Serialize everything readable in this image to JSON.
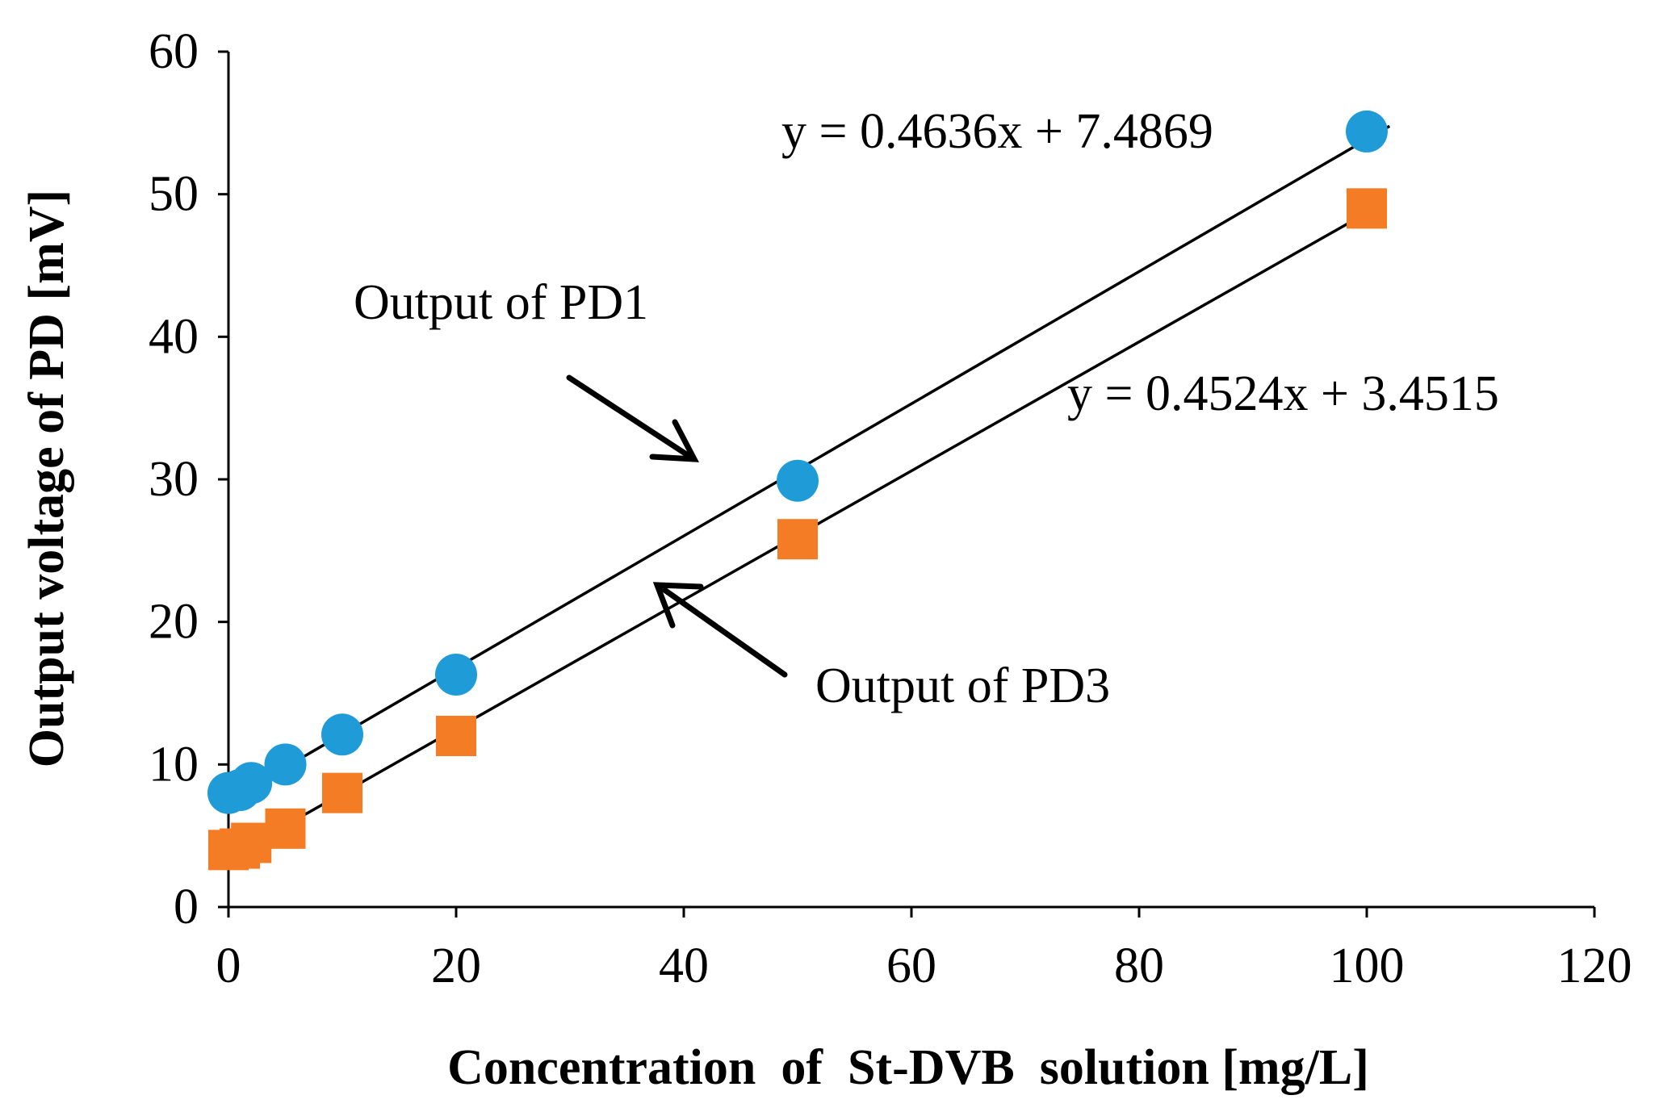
{
  "chart_data": {
    "type": "scatter",
    "title": "",
    "xlabel": "Concentration  of  St-DVB  solution [mg/L]",
    "ylabel": "Output voltage of PD [mV]",
    "xlim": [
      0,
      120
    ],
    "ylim": [
      0,
      60
    ],
    "xticks": [
      0,
      20,
      40,
      60,
      80,
      100,
      120
    ],
    "yticks": [
      0,
      10,
      20,
      30,
      40,
      50,
      60
    ],
    "xtick_labels": [
      "0",
      "20",
      "40",
      "60",
      "80",
      "100",
      "120"
    ],
    "ytick_labels": [
      "0",
      "10",
      "20",
      "30",
      "40",
      "50",
      "60"
    ],
    "grid": false,
    "series": [
      {
        "name": "Output of PD1",
        "marker": "circle",
        "color": "#1f9bd7",
        "x": [
          0,
          1,
          2,
          5,
          10,
          20,
          50,
          100
        ],
        "y": [
          8.0,
          8.2,
          8.7,
          10.0,
          12.1,
          16.3,
          29.9,
          54.4
        ],
        "trendline": {
          "slope": 0.4636,
          "intercept": 7.4869,
          "x_range": [
            0,
            102
          ],
          "equation": "y = 0.4636x + 7.4869"
        }
      },
      {
        "name": "Output of PD3",
        "marker": "square",
        "color": "#f47c24",
        "x": [
          0,
          1,
          2,
          5,
          10,
          20,
          50,
          100
        ],
        "y": [
          4.0,
          4.1,
          4.5,
          5.5,
          8.0,
          12.0,
          25.8,
          49.0
        ],
        "trendline": {
          "slope": 0.4524,
          "intercept": 3.4515,
          "x_range": [
            0,
            100
          ],
          "equation": "y = 0.4524x + 3.4515"
        }
      }
    ],
    "annotations": [
      {
        "text": "Output of PD1",
        "arrow_to": "PD1 trendline"
      },
      {
        "text": "Output of PD3",
        "arrow_to": "PD3 trendline"
      }
    ]
  }
}
